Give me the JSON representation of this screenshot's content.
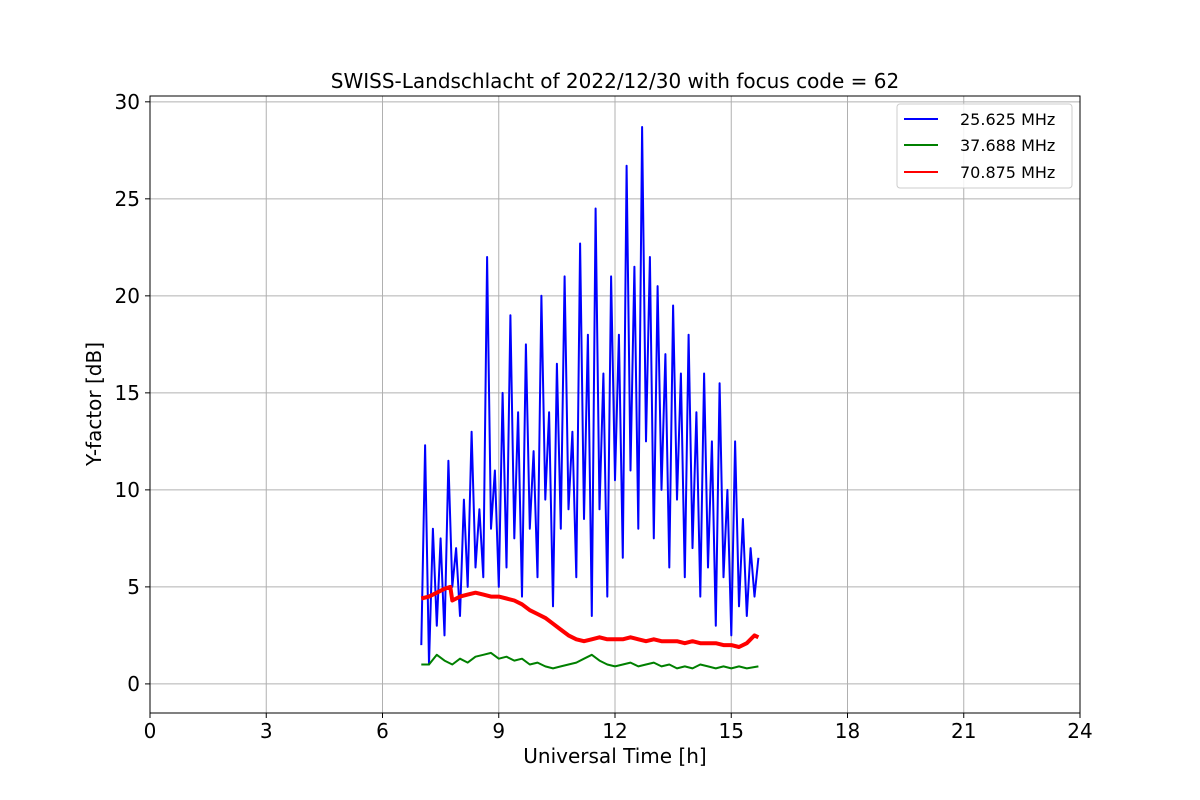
{
  "chart_data": {
    "type": "line",
    "title": "SWISS-Landschlacht of 2022/12/30 with focus code = 62",
    "xlabel": "Universal Time [h]",
    "ylabel": "Y-factor [dB]",
    "xlim": [
      0,
      24
    ],
    "ylim": [
      -1.5,
      30.3
    ],
    "xticks": [
      0,
      3,
      6,
      9,
      12,
      15,
      18,
      21,
      24
    ],
    "yticks": [
      0,
      5,
      10,
      15,
      20,
      25,
      30
    ],
    "grid": true,
    "legend_position": "top-right",
    "series": [
      {
        "name": "25.625 MHz",
        "color": "#0000ff",
        "x": [
          7.0,
          7.1,
          7.2,
          7.3,
          7.4,
          7.5,
          7.6,
          7.7,
          7.8,
          7.9,
          8.0,
          8.1,
          8.2,
          8.3,
          8.4,
          8.5,
          8.6,
          8.7,
          8.8,
          8.9,
          9.0,
          9.1,
          9.2,
          9.3,
          9.4,
          9.5,
          9.6,
          9.7,
          9.8,
          9.9,
          10.0,
          10.1,
          10.2,
          10.3,
          10.4,
          10.5,
          10.6,
          10.7,
          10.8,
          10.9,
          11.0,
          11.1,
          11.2,
          11.3,
          11.4,
          11.5,
          11.6,
          11.7,
          11.8,
          11.9,
          12.0,
          12.1,
          12.2,
          12.3,
          12.4,
          12.5,
          12.6,
          12.7,
          12.8,
          12.9,
          13.0,
          13.1,
          13.2,
          13.3,
          13.4,
          13.5,
          13.6,
          13.7,
          13.8,
          13.9,
          14.0,
          14.1,
          14.2,
          14.3,
          14.4,
          14.5,
          14.6,
          14.7,
          14.8,
          14.9,
          15.0,
          15.1,
          15.2,
          15.3,
          15.4,
          15.5,
          15.6,
          15.7
        ],
        "y": [
          2.0,
          12.3,
          1.0,
          8.0,
          3.0,
          7.5,
          2.5,
          11.5,
          5.0,
          7.0,
          3.5,
          9.5,
          5.0,
          13.0,
          6.0,
          9.0,
          5.5,
          22.0,
          8.0,
          11.0,
          5.0,
          15.0,
          6.0,
          19.0,
          7.5,
          14.0,
          4.5,
          17.5,
          8.0,
          12.0,
          5.5,
          20.0,
          9.5,
          14.0,
          4.0,
          16.5,
          8.0,
          21.0,
          9.0,
          13.0,
          5.5,
          22.7,
          8.5,
          18.0,
          3.5,
          24.5,
          9.0,
          16.0,
          4.5,
          21.0,
          10.5,
          18.0,
          6.5,
          26.7,
          11.0,
          21.5,
          8.0,
          28.7,
          12.5,
          22.0,
          7.5,
          20.5,
          10.0,
          17.0,
          6.0,
          19.5,
          9.5,
          16.0,
          5.5,
          18.0,
          7.0,
          14.0,
          4.5,
          16.0,
          6.0,
          12.5,
          3.0,
          15.5,
          5.5,
          10.0,
          2.5,
          12.5,
          4.0,
          8.5,
          3.5,
          7.0,
          4.5,
          6.5
        ]
      },
      {
        "name": "37.688 MHz",
        "color": "#008000",
        "x": [
          7.0,
          7.2,
          7.4,
          7.6,
          7.8,
          8.0,
          8.2,
          8.4,
          8.6,
          8.8,
          9.0,
          9.2,
          9.4,
          9.6,
          9.8,
          10.0,
          10.2,
          10.4,
          10.6,
          10.8,
          11.0,
          11.2,
          11.4,
          11.6,
          11.8,
          12.0,
          12.2,
          12.4,
          12.6,
          12.8,
          13.0,
          13.2,
          13.4,
          13.6,
          13.8,
          14.0,
          14.2,
          14.4,
          14.6,
          14.8,
          15.0,
          15.2,
          15.4,
          15.7
        ],
        "y": [
          1.0,
          1.0,
          1.5,
          1.2,
          1.0,
          1.3,
          1.1,
          1.4,
          1.5,
          1.6,
          1.3,
          1.4,
          1.2,
          1.3,
          1.0,
          1.1,
          0.9,
          0.8,
          0.9,
          1.0,
          1.1,
          1.3,
          1.5,
          1.2,
          1.0,
          0.9,
          1.0,
          1.1,
          0.9,
          1.0,
          1.1,
          0.9,
          1.0,
          0.8,
          0.9,
          0.8,
          1.0,
          0.9,
          0.8,
          0.9,
          0.8,
          0.9,
          0.8,
          0.9
        ]
      },
      {
        "name": "70.875 MHz",
        "color": "#ff0000",
        "x": [
          7.0,
          7.2,
          7.4,
          7.6,
          7.75,
          7.8,
          8.0,
          8.2,
          8.4,
          8.6,
          8.8,
          9.0,
          9.2,
          9.4,
          9.6,
          9.8,
          10.0,
          10.2,
          10.4,
          10.6,
          10.8,
          11.0,
          11.2,
          11.4,
          11.6,
          11.8,
          12.0,
          12.2,
          12.4,
          12.6,
          12.8,
          13.0,
          13.2,
          13.4,
          13.6,
          13.8,
          14.0,
          14.2,
          14.4,
          14.6,
          14.8,
          15.0,
          15.2,
          15.4,
          15.6,
          15.7
        ],
        "y": [
          4.4,
          4.5,
          4.7,
          4.9,
          5.0,
          4.3,
          4.5,
          4.6,
          4.7,
          4.6,
          4.5,
          4.5,
          4.4,
          4.3,
          4.1,
          3.8,
          3.6,
          3.4,
          3.1,
          2.8,
          2.5,
          2.3,
          2.2,
          2.3,
          2.4,
          2.3,
          2.3,
          2.3,
          2.4,
          2.3,
          2.2,
          2.3,
          2.2,
          2.2,
          2.2,
          2.1,
          2.2,
          2.1,
          2.1,
          2.1,
          2.0,
          2.0,
          1.9,
          2.1,
          2.5,
          2.4
        ]
      }
    ]
  }
}
